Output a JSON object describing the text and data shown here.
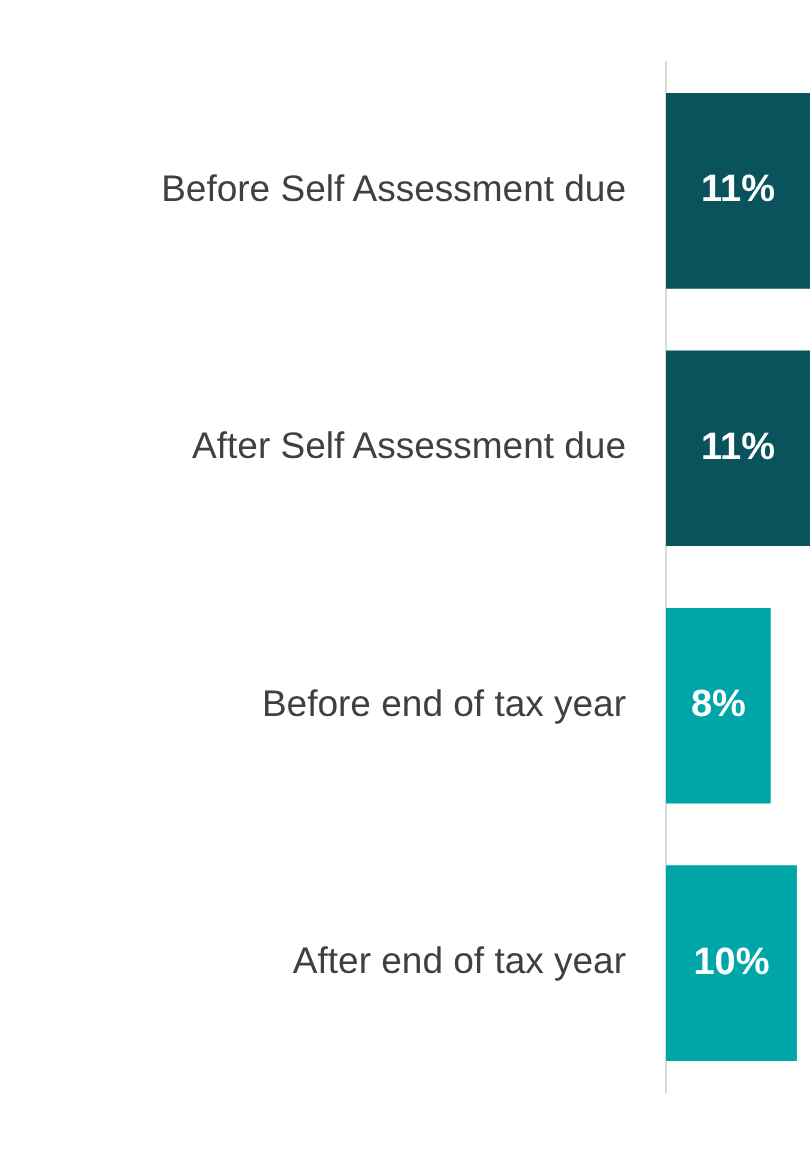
{
  "chart_data": {
    "type": "bar",
    "orientation": "horizontal",
    "categories": [
      "Before Self Assessment due",
      "After Self Assessment due",
      "Before end of tax year",
      "After end of tax year"
    ],
    "values": [
      11,
      11,
      8,
      10
    ],
    "colors": [
      "#08535c",
      "#08535c",
      "#00a5a8",
      "#00a5a8"
    ],
    "xlim": [
      0,
      11
    ],
    "value_labels": [
      "11%",
      "11%",
      "8%",
      "10%"
    ],
    "tick_labels": "y",
    "legend": false
  }
}
